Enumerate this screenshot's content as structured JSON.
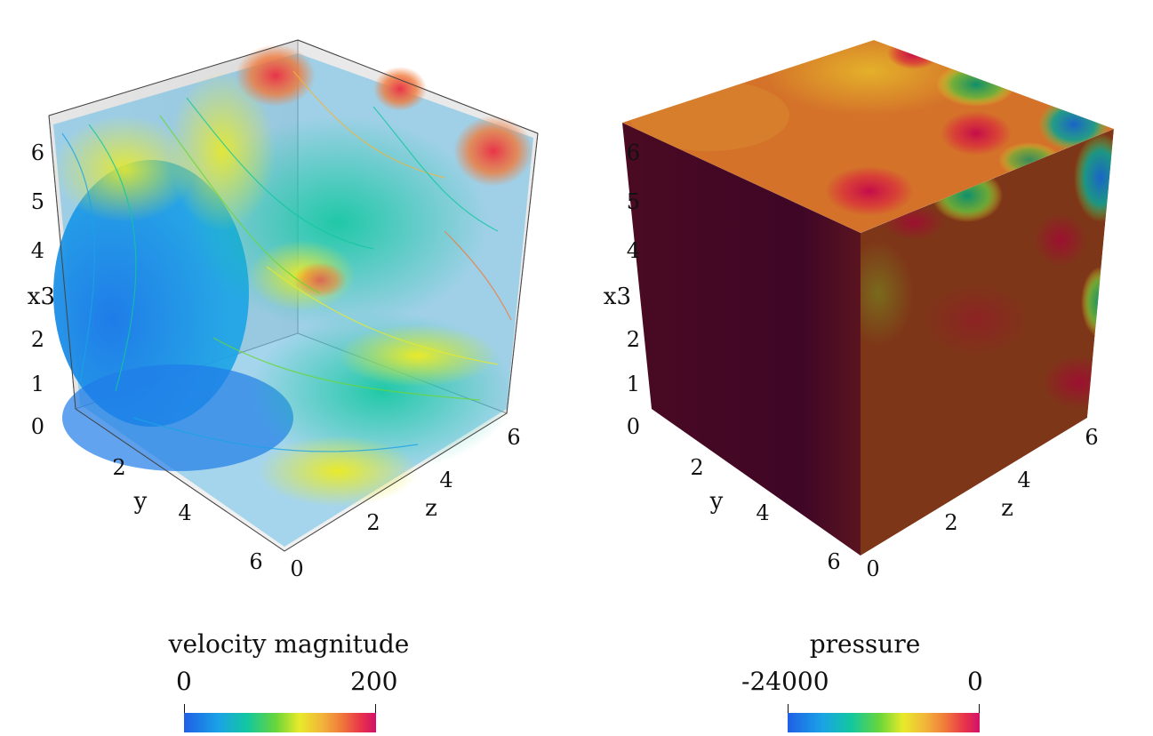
{
  "left": {
    "axis_labels": {
      "vertical": "x3",
      "left_horizontal": "y",
      "right_horizontal": "z"
    },
    "vertical_ticks": [
      "0",
      "1",
      "2",
      "3",
      "4",
      "5",
      "6"
    ],
    "y_ticks": [
      "0",
      "2",
      "4",
      "6"
    ],
    "z_ticks": [
      "0",
      "2",
      "4",
      "6"
    ],
    "colorbar": {
      "title": "velocity magnitude",
      "min": "0",
      "max": "200"
    }
  },
  "right": {
    "axis_labels": {
      "vertical": "x3",
      "left_horizontal": "y",
      "right_horizontal": "z"
    },
    "vertical_ticks": [
      "0",
      "1",
      "2",
      "4",
      "5",
      "6"
    ],
    "y_ticks": [
      "2",
      "4",
      "6"
    ],
    "z_ticks": [
      "0",
      "2",
      "4",
      "6"
    ],
    "colorbar": {
      "title": "pressure",
      "min": "-24000",
      "max": "0"
    }
  },
  "colormap": [
    "#1f5fe6",
    "#1aa3e6",
    "#12c7a0",
    "#6ad63a",
    "#e8ea2a",
    "#f2b43a",
    "#f07a3a",
    "#e8344a",
    "#d3106a"
  ]
}
